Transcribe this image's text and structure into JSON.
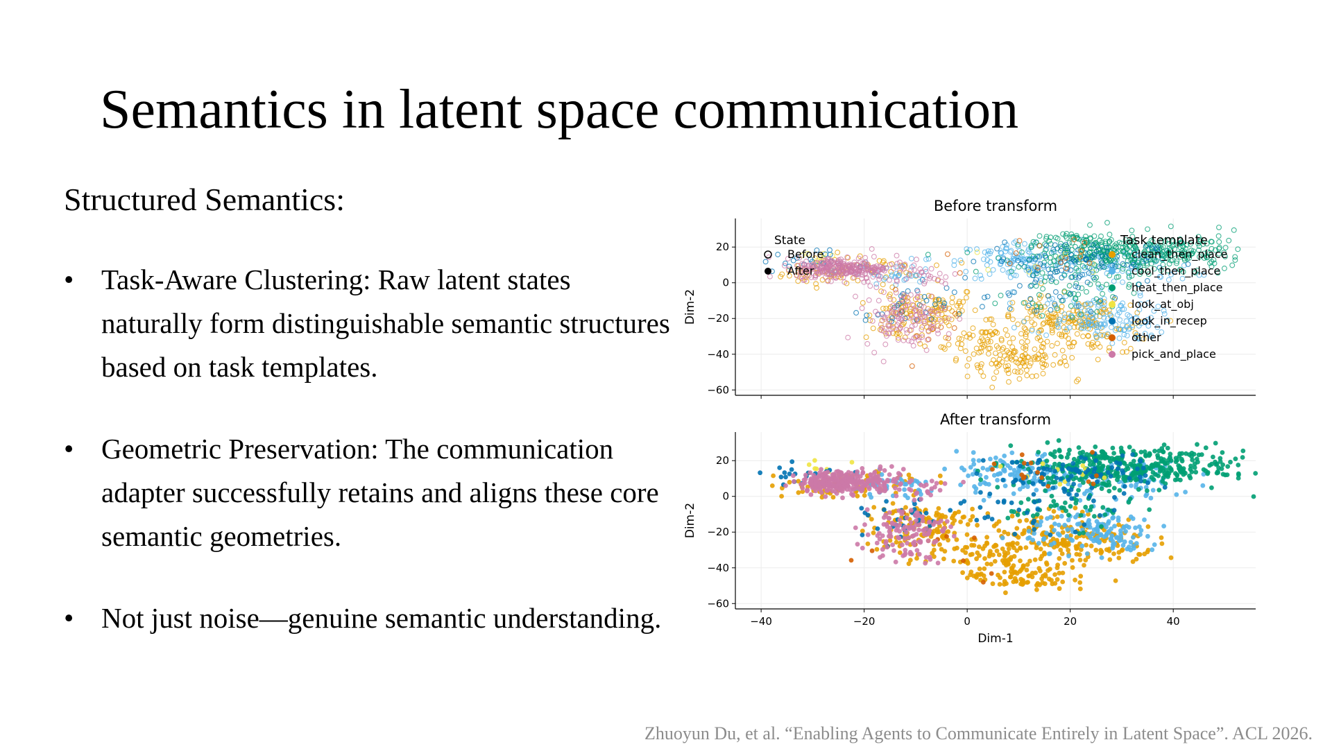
{
  "slide": {
    "title": "Semantics in latent space communication",
    "subtitle": "Structured Semantics:",
    "bullets": [
      "Task-Aware Clustering: Raw latent states naturally form distinguishable semantic structures based on task templates.",
      "Geometric Preservation: The communication adapter successfully retains and aligns these core semantic geometries.",
      "Not just noise—genuine semantic understanding."
    ],
    "bullet_symbol": "•",
    "citation": "Zhuoyun Du, et al. “Enabling Agents to Communicate Entirely in Latent Space”. ACL 2026."
  },
  "chart_data": {
    "type": "scatter",
    "shared_x": {
      "label": "Dim-1",
      "lim": [
        -45,
        56
      ],
      "ticks": [
        -40,
        -20,
        0,
        20,
        40
      ],
      "tick_labels": [
        "−40",
        "−20",
        "0",
        "20",
        "40"
      ]
    },
    "state_legend": {
      "title": "State",
      "placement": "top-left",
      "entries": [
        {
          "label": "Before",
          "marker": "open-circle"
        },
        {
          "label": "After",
          "marker": "filled-circle"
        }
      ]
    },
    "template_legend": {
      "title": "Task template",
      "placement": "top-right"
    },
    "series": [
      {
        "name": "clean_then_place",
        "color": "#E69F00",
        "clusters": [
          [
            -28,
            5,
            4,
            3,
            40
          ],
          [
            -12,
            -20,
            4,
            7,
            70
          ],
          [
            -6,
            -14,
            4,
            6,
            60
          ],
          [
            4,
            -32,
            6,
            5,
            80
          ],
          [
            10,
            -45,
            5,
            4,
            90
          ],
          [
            17,
            -20,
            6,
            6,
            100
          ],
          [
            25,
            -26,
            6,
            7,
            90
          ],
          [
            -20,
            8,
            6,
            4,
            40
          ]
        ]
      },
      {
        "name": "cool_then_place",
        "color": "#56B4E9",
        "clusters": [
          [
            10,
            12,
            6,
            6,
            120
          ],
          [
            24,
            -18,
            6,
            6,
            100
          ],
          [
            30,
            -25,
            4,
            4,
            40
          ],
          [
            -15,
            5,
            5,
            4,
            40
          ],
          [
            30,
            10,
            7,
            6,
            80
          ]
        ]
      },
      {
        "name": "heat_then_place",
        "color": "#009E73",
        "clusters": [
          [
            30,
            15,
            10,
            5,
            260
          ],
          [
            42,
            18,
            6,
            5,
            80
          ],
          [
            22,
            22,
            6,
            4,
            60
          ],
          [
            20,
            -6,
            6,
            6,
            50
          ]
        ]
      },
      {
        "name": "look_at_obj",
        "color": "#F0E442",
        "clusters": [
          [
            -28,
            16,
            3,
            3,
            10
          ],
          [
            20,
            12,
            6,
            4,
            10
          ]
        ]
      },
      {
        "name": "look_in_recep",
        "color": "#0072B2",
        "clusters": [
          [
            20,
            12,
            8,
            6,
            90
          ],
          [
            -32,
            12,
            4,
            3,
            20
          ],
          [
            -12,
            -15,
            4,
            6,
            30
          ],
          [
            12,
            -8,
            8,
            6,
            30
          ]
        ]
      },
      {
        "name": "other",
        "color": "#D55E00",
        "clusters": [
          [
            15,
            14,
            10,
            6,
            15
          ],
          [
            -5,
            -25,
            10,
            10,
            10
          ]
        ]
      },
      {
        "name": "pick_and_place",
        "color": "#CC79A7",
        "clusters": [
          [
            -25,
            8,
            4,
            3,
            230
          ],
          [
            -17,
            9,
            3,
            4,
            50
          ],
          [
            -12,
            -20,
            4,
            8,
            120
          ],
          [
            -8,
            4,
            3,
            3,
            20
          ]
        ]
      }
    ],
    "panels": [
      {
        "title": "Before transform",
        "state": "Before",
        "ylabel": "Dim-2",
        "ylim": [
          -63,
          36
        ],
        "yticks": [
          20,
          0,
          -20,
          -40,
          -60
        ],
        "ytick_labels": [
          "20",
          "0",
          "−20",
          "−40",
          "−60"
        ]
      },
      {
        "title": "After transform",
        "state": "After",
        "ylabel": "Dim-2",
        "ylim": [
          -63,
          36
        ],
        "yticks": [
          20,
          0,
          -20,
          -40,
          -60
        ],
        "ytick_labels": [
          "20",
          "0",
          "−20",
          "−40",
          "−60"
        ]
      }
    ],
    "grid": true
  }
}
